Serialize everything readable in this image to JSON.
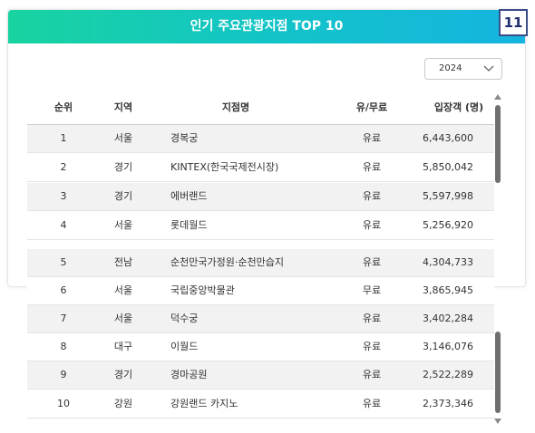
{
  "header": {
    "title": "인기 주요관광지점 TOP 10"
  },
  "badge": "11",
  "year_select": {
    "value": "2024"
  },
  "columns": [
    "순위",
    "지역",
    "지점명",
    "유/무료",
    "입장객 (명)"
  ],
  "rows": [
    {
      "rank": "1",
      "region": "서울",
      "name": "경복궁",
      "fee": "유료",
      "visitors": "6,443,600"
    },
    {
      "rank": "2",
      "region": "경기",
      "name": "KINTEX(한국국제전시장)",
      "fee": "유료",
      "visitors": "5,850,042"
    },
    {
      "rank": "3",
      "region": "경기",
      "name": "에버랜드",
      "fee": "유료",
      "visitors": "5,597,998"
    },
    {
      "rank": "4",
      "region": "서울",
      "name": "롯데월드",
      "fee": "유료",
      "visitors": "5,256,920"
    },
    {
      "rank": "5",
      "region": "전남",
      "name": "순천만국가정원·순천만습지",
      "fee": "유료",
      "visitors": "4,304,733"
    },
    {
      "rank": "6",
      "region": "서울",
      "name": "국립중앙박물관",
      "fee": "무료",
      "visitors": "3,865,945"
    },
    {
      "rank": "7",
      "region": "서울",
      "name": "덕수궁",
      "fee": "유료",
      "visitors": "3,402,284"
    },
    {
      "rank": "8",
      "region": "대구",
      "name": "이월드",
      "fee": "유료",
      "visitors": "3,146,076"
    },
    {
      "rank": "9",
      "region": "경기",
      "name": "경마공원",
      "fee": "유료",
      "visitors": "2,522,289"
    },
    {
      "rank": "10",
      "region": "강원",
      "name": "강원랜드 카지노",
      "fee": "유료",
      "visitors": "2,373,346"
    }
  ],
  "colors": {
    "header_start": "#19d3a0",
    "header_end": "#14b4e0",
    "badge_border": "#3b4d88",
    "row_shade": "#f2f2f2"
  },
  "icons": {
    "select": "chevron-down-icon",
    "scroll_up": "arrow-up-icon",
    "scroll_down": "arrow-down-icon"
  }
}
